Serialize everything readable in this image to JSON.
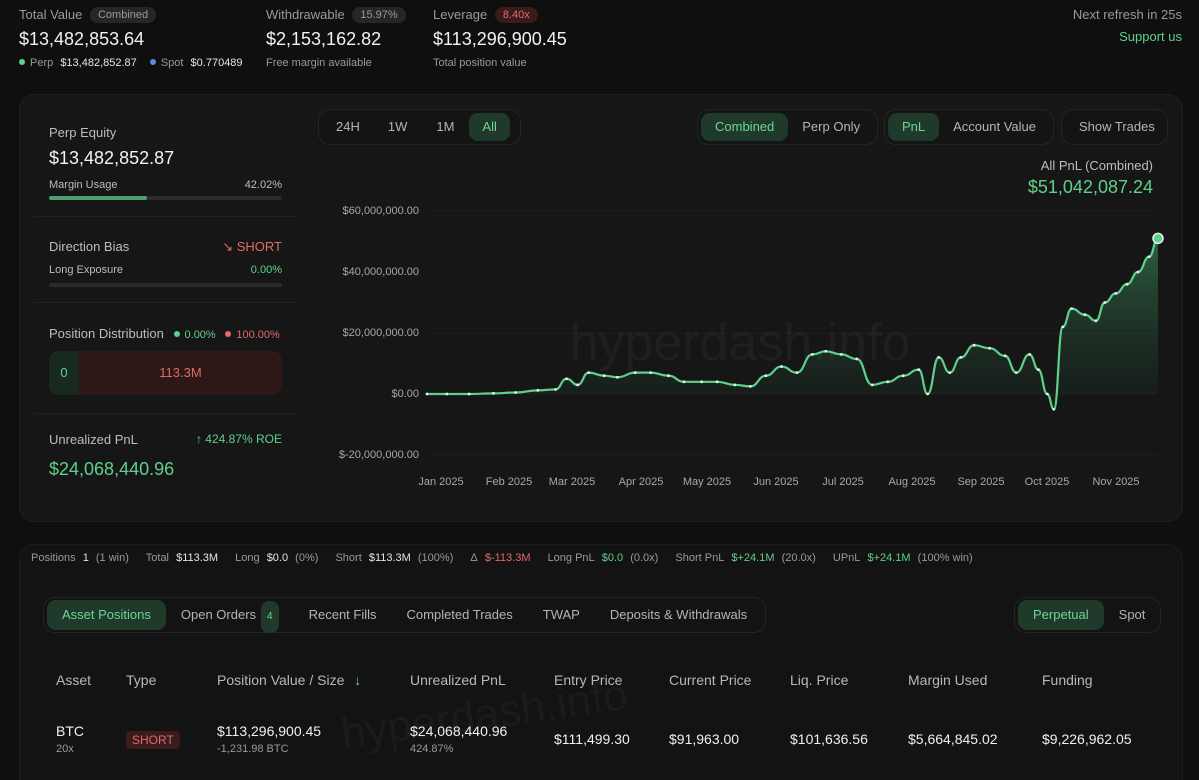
{
  "header": {
    "total_value_label": "Total Value",
    "total_value_pill": "Combined",
    "total_value": "$13,482,853.64",
    "perp_label": "Perp",
    "perp_value": "$13,482,852.87",
    "spot_label": "Spot",
    "spot_value": "$0.770489",
    "withdrawable_label": "Withdrawable",
    "withdrawable_pill": "15.97%",
    "withdrawable_value": "$2,153,162.82",
    "withdrawable_sub": "Free margin available",
    "leverage_label": "Leverage",
    "leverage_pill": "8.40x",
    "leverage_value": "$113,296,900.45",
    "leverage_sub": "Total position value",
    "refresh": "Next refresh in 25s",
    "support": "Support us"
  },
  "left": {
    "perp_equity_label": "Perp Equity",
    "perp_equity": "$13,482,852.87",
    "margin_usage_label": "Margin Usage",
    "margin_usage": "42.02%",
    "margin_usage_fraction": 0.4202,
    "direction_bias_label": "Direction Bias",
    "direction_bias": "SHORT",
    "long_exposure_label": "Long Exposure",
    "long_exposure": "0.00%",
    "long_exposure_fraction": 0.0,
    "position_dist_label": "Position Distribution",
    "dist_long": "0.00%",
    "dist_short": "100.00%",
    "dist_long_value": "0",
    "dist_short_value": "113.3M",
    "unrealized_label": "Unrealized PnL",
    "roe": "424.87% ROE",
    "unrealized": "$24,068,440.96"
  },
  "chart_controls": {
    "ranges": [
      "24H",
      "1W",
      "1M",
      "All"
    ],
    "active_range": "All",
    "scope": [
      "Combined",
      "Perp Only"
    ],
    "active_scope": "Combined",
    "metric": [
      "PnL",
      "Account Value"
    ],
    "active_metric": "PnL",
    "show_trades": "Show Trades"
  },
  "chart_header": {
    "label": "All PnL (Combined)",
    "value": "$51,042,087.24"
  },
  "watermark": "hyperdash.info",
  "chart_data": {
    "type": "area",
    "y_ticks": [
      "$60,000,000.00",
      "$40,000,000.00",
      "$20,000,000.00",
      "$0.00",
      "$-20,000,000.00"
    ],
    "x_ticks": [
      "Jan 2025",
      "Feb 2025",
      "Mar 2025",
      "Apr 2025",
      "May 2025",
      "Jun 2025",
      "Jul 2025",
      "Aug 2025",
      "Sep 2025",
      "Oct 2025",
      "Nov 2025"
    ],
    "ylim": [
      -20000000,
      60000000
    ],
    "series": [
      {
        "color": "#5fd08c",
        "x": [
          "2025-01-01",
          "2025-01-10",
          "2025-01-20",
          "2025-01-31",
          "2025-02-10",
          "2025-02-20",
          "2025-02-28",
          "2025-03-05",
          "2025-03-10",
          "2025-03-15",
          "2025-03-22",
          "2025-03-28",
          "2025-04-05",
          "2025-04-12",
          "2025-04-20",
          "2025-04-27",
          "2025-05-05",
          "2025-05-12",
          "2025-05-20",
          "2025-05-27",
          "2025-06-03",
          "2025-06-10",
          "2025-06-17",
          "2025-06-24",
          "2025-06-30",
          "2025-07-07",
          "2025-07-14",
          "2025-07-21",
          "2025-07-28",
          "2025-08-04",
          "2025-08-11",
          "2025-08-15",
          "2025-08-20",
          "2025-08-25",
          "2025-08-30",
          "2025-09-05",
          "2025-09-12",
          "2025-09-19",
          "2025-09-24",
          "2025-09-30",
          "2025-10-04",
          "2025-10-08",
          "2025-10-11",
          "2025-10-15",
          "2025-10-19",
          "2025-10-25",
          "2025-10-30",
          "2025-11-03",
          "2025-11-08",
          "2025-11-13",
          "2025-11-18",
          "2025-11-23",
          "2025-11-27"
        ],
        "y": [
          0,
          0,
          0,
          200000,
          500000,
          1200000,
          1500000,
          5000000,
          3000000,
          7000000,
          6000000,
          5500000,
          7000000,
          7000000,
          6000000,
          4000000,
          4000000,
          4000000,
          3000000,
          2500000,
          6000000,
          9000000,
          7000000,
          13000000,
          14000000,
          13000000,
          11500000,
          3000000,
          4000000,
          6000000,
          8000000,
          0,
          12000000,
          7000000,
          12000000,
          16000000,
          15000000,
          12500000,
          7000000,
          13000000,
          8000000,
          0,
          -5000000,
          22000000,
          28000000,
          26000000,
          24000000,
          30000000,
          33000000,
          36000000,
          40000000,
          45000000,
          51042087
        ]
      }
    ]
  },
  "stats": {
    "positions_label": "Positions",
    "positions": "1",
    "positions_win": "(1 win)",
    "total_label": "Total",
    "total": "$113.3M",
    "long_label": "Long",
    "long": "$0.0",
    "long_pct": "(0%)",
    "short_label": "Short",
    "short": "$113.3M",
    "short_pct": "(100%)",
    "delta_label": "Δ",
    "delta": "$-113.3M",
    "long_pnl_label": "Long PnL",
    "long_pnl": "$0.0",
    "long_pnl_x": "(0.0x)",
    "short_pnl_label": "Short PnL",
    "short_pnl": "$+24.1M",
    "short_pnl_x": "(20.0x)",
    "upnl_label": "UPnL",
    "upnl": "$+24.1M",
    "upnl_win": "(100% win)"
  },
  "tabs": {
    "items": [
      "Asset Positions",
      "Open Orders",
      "Recent Fills",
      "Completed Trades",
      "TWAP",
      "Deposits & Withdrawals"
    ],
    "open_orders_count": "4",
    "market": [
      "Perpetual",
      "Spot"
    ]
  },
  "table": {
    "headers": [
      "Asset",
      "Type",
      "Position Value / Size",
      "Unrealized PnL",
      "Entry Price",
      "Current Price",
      "Liq. Price",
      "Margin Used",
      "Funding"
    ],
    "row": {
      "asset": "BTC",
      "leverage": "20x",
      "type": "SHORT",
      "value": "$113,296,900.45",
      "size": "-1,231.98 BTC",
      "upnl": "$24,068,440.96",
      "upnl_pct": "424.87%",
      "entry": "$111,499.30",
      "current": "$91,963.00",
      "liq": "$101,636.56",
      "margin": "$5,664,845.02",
      "funding": "$9,226,962.05"
    }
  },
  "colors": {
    "accent": "#5fd08c",
    "negative": "#e06a6a",
    "background": "#0f0f0f"
  }
}
